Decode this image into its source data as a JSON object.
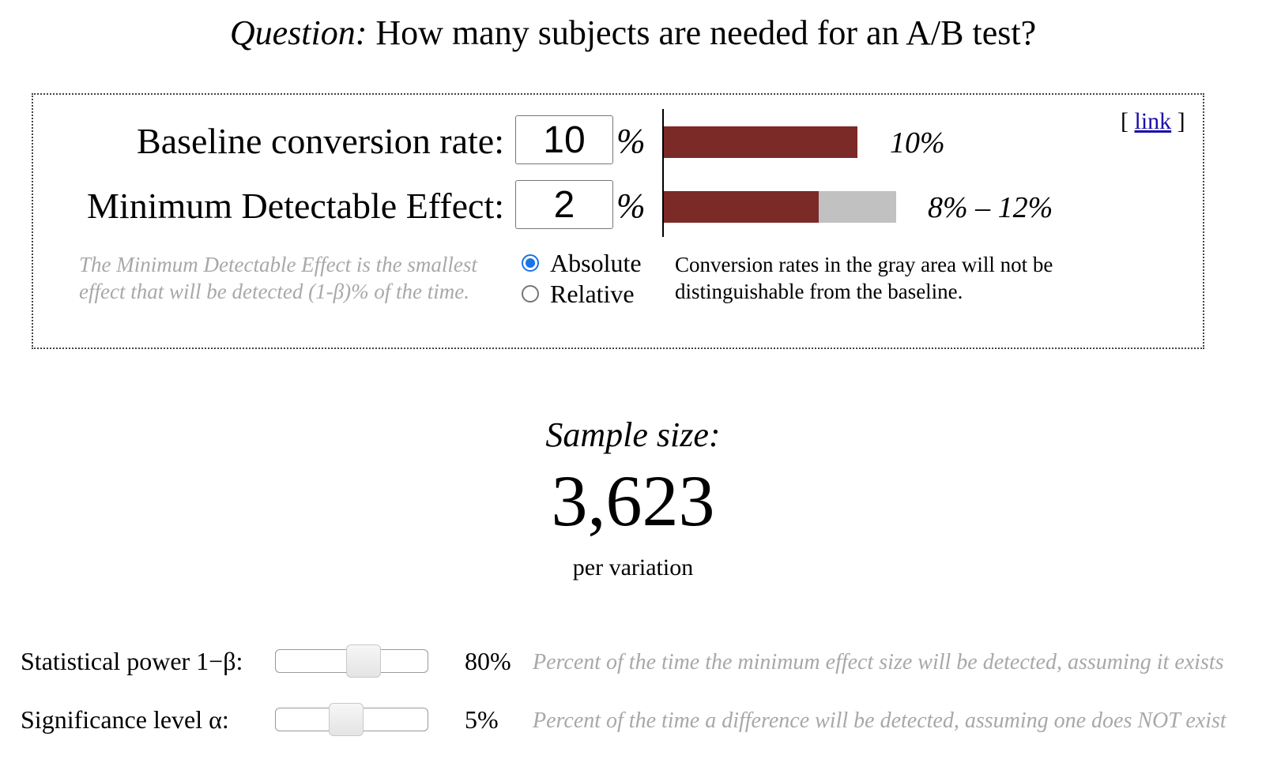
{
  "title": {
    "question_prefix": "Question:",
    "question_text": " How many subjects are needed for an A/B test?"
  },
  "link": {
    "open": "[ ",
    "text": "link",
    "close": " ]"
  },
  "inputs": {
    "baseline": {
      "label": "Baseline conversion rate:",
      "value": "10",
      "unit": "%"
    },
    "mde": {
      "label": "Minimum Detectable Effect:",
      "value": "2",
      "unit": "%"
    }
  },
  "bars": {
    "baseline_label": "10%",
    "range_label": "8% – 12%",
    "baseline_value": 10,
    "range_low": 8,
    "range_high": 12,
    "colors": {
      "baseline": "#7b2a28",
      "gray": "#c1c1c1"
    }
  },
  "mde_note": "The Minimum Detectable Effect is the smallest effect that will be detected (1-β)% of the time.",
  "mode": {
    "options": [
      {
        "label": "Absolute",
        "checked": true
      },
      {
        "label": "Relative",
        "checked": false
      }
    ]
  },
  "gray_area_note": "Conversion rates in the gray area will not be distinguishable from the baseline.",
  "result": {
    "title": "Sample size:",
    "value": "3,623",
    "unit": "per variation"
  },
  "sliders": [
    {
      "label": "Statistical power 1−β:",
      "value": "80%",
      "position": 0.6,
      "description": "Percent of the time the minimum effect size will be detected, assuming it exists"
    },
    {
      "label": "Significance level α:",
      "value": "5%",
      "position": 0.45,
      "description": "Percent of the time a difference will be detected, assuming one does NOT exist"
    }
  ]
}
